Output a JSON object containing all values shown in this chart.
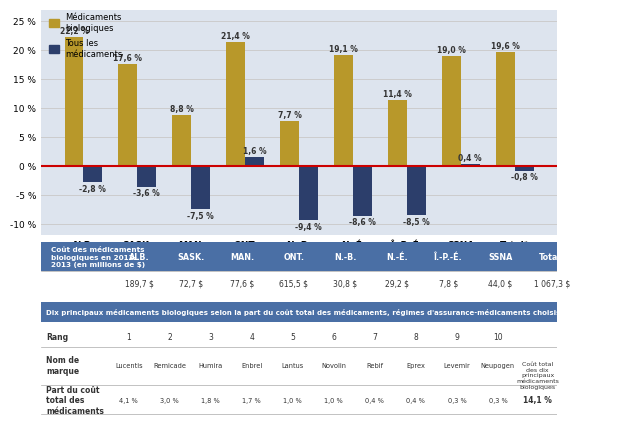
{
  "categories": [
    "ALB.",
    "SASK.",
    "MAN.",
    "ONT.",
    "N.-B.",
    "N.-É.",
    "Î.-P.-É.",
    "SSNA",
    "Total*"
  ],
  "bio_values": [
    22.2,
    17.6,
    8.8,
    21.4,
    7.7,
    19.1,
    11.4,
    19.0,
    19.6
  ],
  "all_values": [
    -2.8,
    -3.6,
    -7.5,
    1.6,
    -9.4,
    -8.6,
    -8.5,
    0.4,
    -0.8
  ],
  "bio_color": "#B8982A",
  "all_color": "#2C3E6B",
  "bg_color": "#FFFFFF",
  "chart_bg": "#DDE4EE",
  "ylim": [
    -12,
    27
  ],
  "yticks": [
    -10,
    -5,
    0,
    5,
    10,
    15,
    20,
    25
  ],
  "zero_line_color": "#CC0000",
  "grid_color": "#CCCCCC",
  "legend_bio": "Médicaments\nbiologiques",
  "legend_all": "Tous les\nmédicaments",
  "table1_header_bg": "#4A6FA5",
  "table1_header_color": "#FFFFFF",
  "table1_label": "Coût des médicaments\nbiologiques en 2012-\n2013 (en millions de $)",
  "table1_values": [
    "189,7 $",
    "72,7 $",
    "77,6 $",
    "615,5 $",
    "30,8 $",
    "29,2 $",
    "7,8 $",
    "44,0 $",
    "1 067,3 $"
  ],
  "table2_title": "Dix principaux médicaments biologiques selon la part du coût total des médicaments, régimes d'assurance-médicaments choisis, 2012-2013",
  "table2_title_bg": "#4A6FA5",
  "table2_title_color": "#FFFFFF",
  "ranks": [
    "1",
    "2",
    "3",
    "4",
    "5",
    "6",
    "7",
    "8",
    "9",
    "10"
  ],
  "drug_names": [
    "Lucentis",
    "Remicade",
    "Humira",
    "Enbrel",
    "Lantus",
    "Novolin",
    "Rebif",
    "Eprex",
    "Levemir",
    "Neupogen"
  ],
  "drug_pcts": [
    "4,1 %",
    "3,0 %",
    "1,8 %",
    "1,7 %",
    "1,0 %",
    "1,0 %",
    "0,4 %",
    "0,4 %",
    "0,3 %",
    "0,3 %"
  ],
  "total_label": "Coût total\ndes dix\nprincipaux\nmédicaments\nbiologiques",
  "total_pct": "14,1 %"
}
